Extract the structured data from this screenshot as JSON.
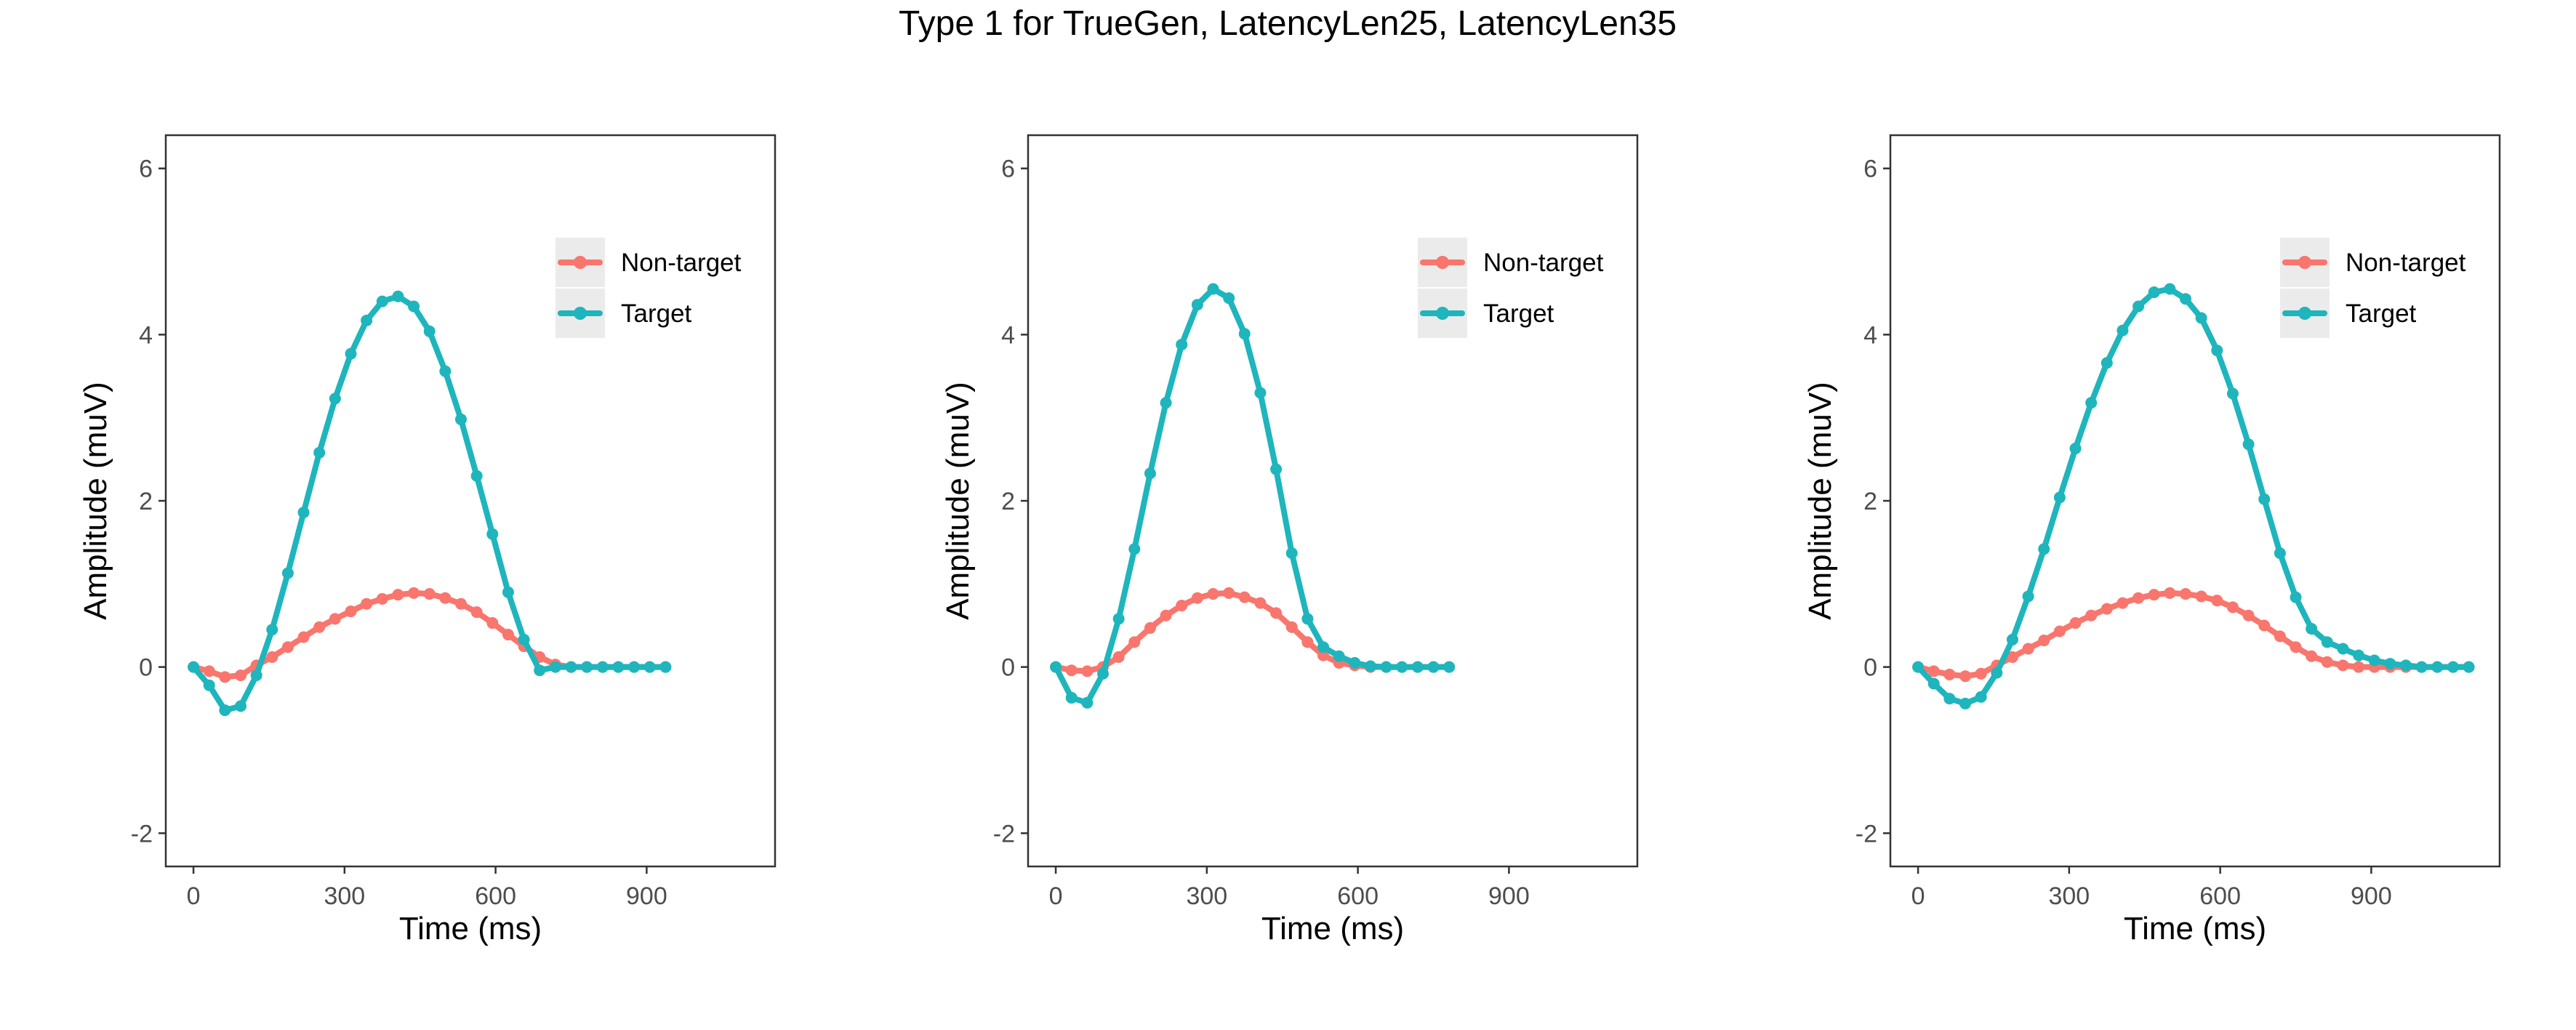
{
  "title": "Type 1 for TrueGen, LatencyLen25, LatencyLen35",
  "colors": {
    "non_target": "#F8766D",
    "target": "#1FB5BD"
  },
  "chart_data": [
    {
      "type": "line",
      "xlabel": "Time (ms)",
      "ylabel": "Amplitude (muV)",
      "xlim": [
        -55,
        1155
      ],
      "ylim": [
        -2.4,
        6.4
      ],
      "xticks": [
        0,
        300,
        600,
        900
      ],
      "yticks": [
        -2,
        0,
        2,
        4,
        6
      ],
      "legend": "top-right",
      "grid": false,
      "series": [
        {
          "name": "Non-target",
          "color": "#F8766D",
          "x": [
            0,
            31.25,
            62.5,
            93.75,
            125,
            156.25,
            187.5,
            218.75,
            250,
            281.25,
            312.5,
            343.75,
            375,
            406.25,
            437.5,
            468.75,
            500,
            531.25,
            562.5,
            593.75,
            625,
            656.25,
            687.5,
            718.75,
            750,
            781.25,
            812.5,
            843.75,
            875,
            906.25,
            937.5
          ],
          "y": [
            0,
            -0.05,
            -0.12,
            -0.1,
            0.02,
            0.12,
            0.24,
            0.36,
            0.48,
            0.58,
            0.67,
            0.76,
            0.82,
            0.87,
            0.89,
            0.88,
            0.83,
            0.76,
            0.66,
            0.53,
            0.39,
            0.25,
            0.12,
            0.03,
            0,
            0,
            0,
            0,
            0,
            0,
            0
          ]
        },
        {
          "name": "Target",
          "color": "#1FB5BD",
          "x": [
            0,
            31.25,
            62.5,
            93.75,
            125,
            156.25,
            187.5,
            218.75,
            250,
            281.25,
            312.5,
            343.75,
            375,
            406.25,
            437.5,
            468.75,
            500,
            531.25,
            562.5,
            593.75,
            625,
            656.25,
            687.5,
            718.75,
            750,
            781.25,
            812.5,
            843.75,
            875,
            906.25,
            937.5
          ],
          "y": [
            0,
            -0.22,
            -0.52,
            -0.47,
            -0.1,
            0.45,
            1.13,
            1.86,
            2.58,
            3.23,
            3.77,
            4.17,
            4.4,
            4.46,
            4.34,
            4.04,
            3.56,
            2.98,
            2.3,
            1.6,
            0.9,
            0.33,
            -0.04,
            0,
            0,
            0,
            0,
            0,
            0,
            0,
            0
          ]
        }
      ]
    },
    {
      "type": "line",
      "xlabel": "Time (ms)",
      "ylabel": "Amplitude (muV)",
      "xlim": [
        -55,
        1155
      ],
      "ylim": [
        -2.4,
        6.4
      ],
      "xticks": [
        0,
        300,
        600,
        900
      ],
      "yticks": [
        -2,
        0,
        2,
        4,
        6
      ],
      "legend": "top-right",
      "grid": false,
      "series": [
        {
          "name": "Non-target",
          "color": "#F8766D",
          "x": [
            0,
            31.25,
            62.5,
            93.75,
            125,
            156.25,
            187.5,
            218.75,
            250,
            281.25,
            312.5,
            343.75,
            375,
            406.25,
            437.5,
            468.75,
            500,
            531.25,
            562.5,
            593.75,
            625,
            656.25,
            687.5,
            718.75,
            750,
            781.25
          ],
          "y": [
            0,
            -0.04,
            -0.05,
            0,
            0.12,
            0.3,
            0.47,
            0.62,
            0.74,
            0.83,
            0.88,
            0.89,
            0.84,
            0.77,
            0.65,
            0.48,
            0.3,
            0.14,
            0.05,
            0.02,
            0,
            0,
            0,
            0,
            0,
            0
          ]
        },
        {
          "name": "Target",
          "color": "#1FB5BD",
          "x": [
            0,
            31.25,
            62.5,
            93.75,
            125,
            156.25,
            187.5,
            218.75,
            250,
            281.25,
            312.5,
            343.75,
            375,
            406.25,
            437.5,
            468.75,
            500,
            531.25,
            562.5,
            593.75,
            625,
            656.25,
            687.5,
            718.75,
            750,
            781.25
          ],
          "y": [
            0,
            -0.37,
            -0.43,
            -0.08,
            0.58,
            1.42,
            2.33,
            3.18,
            3.88,
            4.36,
            4.55,
            4.44,
            4.01,
            3.3,
            2.38,
            1.37,
            0.58,
            0.24,
            0.13,
            0.05,
            0.01,
            0,
            0,
            0,
            0,
            0
          ]
        }
      ]
    },
    {
      "type": "line",
      "xlabel": "Time (ms)",
      "ylabel": "Amplitude (muV)",
      "xlim": [
        -55,
        1155
      ],
      "ylim": [
        -2.4,
        6.4
      ],
      "xticks": [
        0,
        300,
        600,
        900
      ],
      "yticks": [
        -2,
        0,
        2,
        4,
        6
      ],
      "legend": "top-right",
      "grid": false,
      "series": [
        {
          "name": "Non-target",
          "color": "#F8766D",
          "x": [
            0,
            31.25,
            62.5,
            93.75,
            125,
            156.25,
            187.5,
            218.75,
            250,
            281.25,
            312.5,
            343.75,
            375,
            406.25,
            437.5,
            468.75,
            500,
            531.25,
            562.5,
            593.75,
            625,
            656.25,
            687.5,
            718.75,
            750,
            781.25,
            812.5,
            843.75,
            875,
            906.25,
            937.5,
            968.75,
            1000,
            1031.25,
            1062.5,
            1093.75
          ],
          "y": [
            0,
            -0.05,
            -0.09,
            -0.11,
            -0.08,
            0.02,
            0.12,
            0.22,
            0.32,
            0.43,
            0.53,
            0.62,
            0.7,
            0.77,
            0.83,
            0.87,
            0.89,
            0.88,
            0.85,
            0.8,
            0.72,
            0.62,
            0.5,
            0.37,
            0.24,
            0.13,
            0.06,
            0.02,
            0,
            0,
            0,
            0,
            0,
            0,
            0,
            0
          ]
        },
        {
          "name": "Target",
          "color": "#1FB5BD",
          "x": [
            0,
            31.25,
            62.5,
            93.75,
            125,
            156.25,
            187.5,
            218.75,
            250,
            281.25,
            312.5,
            343.75,
            375,
            406.25,
            437.5,
            468.75,
            500,
            531.25,
            562.5,
            593.75,
            625,
            656.25,
            687.5,
            718.75,
            750,
            781.25,
            812.5,
            843.75,
            875,
            906.25,
            937.5,
            968.75,
            1000,
            1031.25,
            1062.5,
            1093.75
          ],
          "y": [
            0,
            -0.2,
            -0.38,
            -0.44,
            -0.36,
            -0.07,
            0.33,
            0.85,
            1.42,
            2.04,
            2.63,
            3.18,
            3.66,
            4.05,
            4.34,
            4.51,
            4.55,
            4.43,
            4.2,
            3.81,
            3.29,
            2.68,
            2.02,
            1.37,
            0.84,
            0.46,
            0.3,
            0.22,
            0.14,
            0.08,
            0.04,
            0.02,
            0,
            0,
            0,
            0
          ]
        }
      ]
    }
  ]
}
